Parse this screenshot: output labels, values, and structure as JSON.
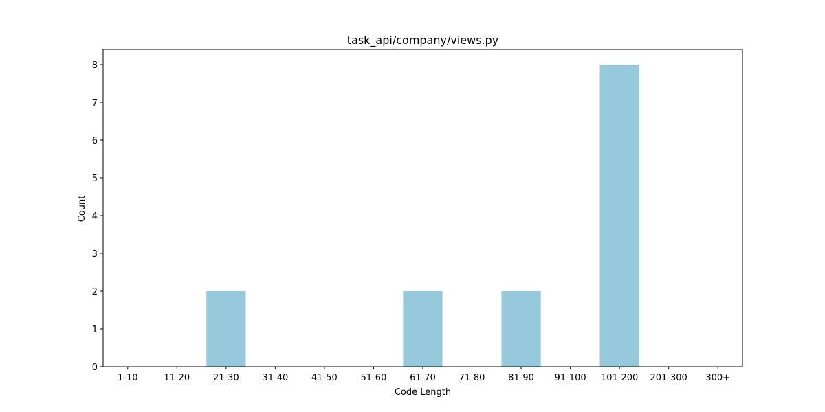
{
  "chart_data": {
    "type": "bar",
    "title": "task_api/company/views.py",
    "xlabel": "Code Length",
    "ylabel": "Count",
    "categories": [
      "1-10",
      "11-20",
      "21-30",
      "31-40",
      "41-50",
      "51-60",
      "61-70",
      "71-80",
      "81-90",
      "91-100",
      "101-200",
      "201-300",
      "300+"
    ],
    "values": [
      0,
      0,
      2,
      0,
      0,
      0,
      2,
      0,
      2,
      0,
      8,
      0,
      0
    ],
    "ylim": [
      0,
      8.4
    ],
    "yticks": [
      0,
      1,
      2,
      3,
      4,
      5,
      6,
      7,
      8
    ],
    "grid": false,
    "legend": "none",
    "colors": {
      "bar": "#96c9dc",
      "axis": "#000000",
      "background": "#ffffff"
    }
  }
}
